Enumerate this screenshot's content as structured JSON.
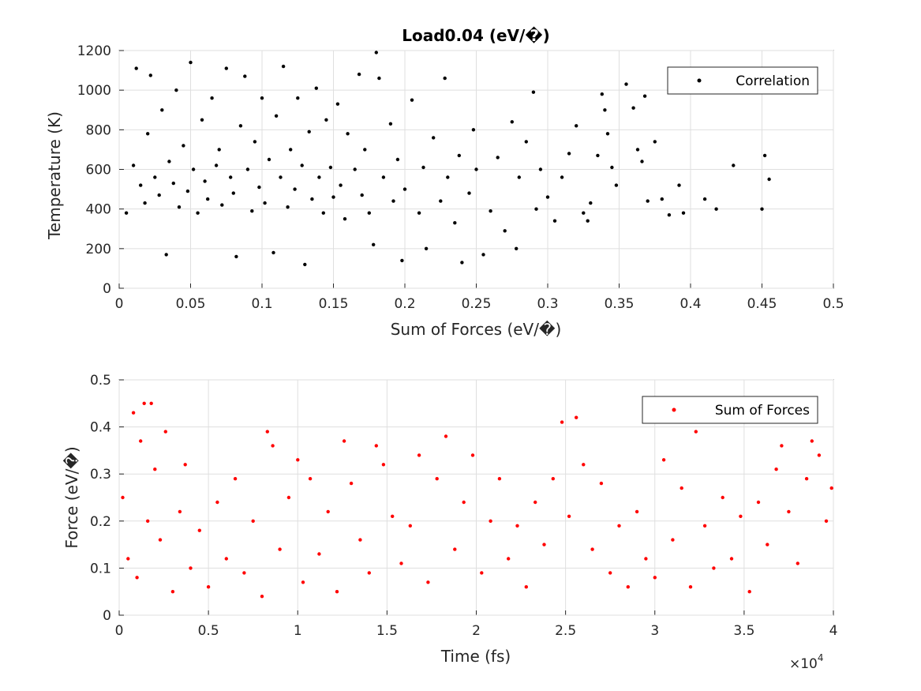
{
  "chart_data": [
    {
      "type": "scatter",
      "title": "Load0.04 (eV/�)",
      "xlabel": "Sum of Forces (eV/�)",
      "ylabel": "Temperature (K)",
      "xlim": [
        0,
        0.5
      ],
      "ylim": [
        0,
        1200
      ],
      "xticks": [
        0,
        0.05,
        0.1,
        0.15,
        0.2,
        0.25,
        0.3,
        0.35,
        0.4,
        0.45,
        0.5
      ],
      "xtick_labels": [
        "0",
        "0.05",
        "0.1",
        "0.15",
        "0.2",
        "0.25",
        "0.3",
        "0.35",
        "0.4",
        "0.45",
        "0.5"
      ],
      "yticks": [
        0,
        200,
        400,
        600,
        800,
        1000,
        1200
      ],
      "ytick_labels": [
        "0",
        "200",
        "400",
        "600",
        "800",
        "1000",
        "1200"
      ],
      "grid": true,
      "legend": "top-right",
      "series": [
        {
          "name": "Correlation",
          "color": "#000000",
          "points": [
            [
              0.005,
              380
            ],
            [
              0.01,
              620
            ],
            [
              0.012,
              1110
            ],
            [
              0.015,
              520
            ],
            [
              0.018,
              430
            ],
            [
              0.02,
              780
            ],
            [
              0.022,
              1075
            ],
            [
              0.025,
              560
            ],
            [
              0.028,
              470
            ],
            [
              0.03,
              900
            ],
            [
              0.033,
              170
            ],
            [
              0.035,
              640
            ],
            [
              0.038,
              530
            ],
            [
              0.04,
              1000
            ],
            [
              0.042,
              410
            ],
            [
              0.045,
              720
            ],
            [
              0.048,
              490
            ],
            [
              0.05,
              1140
            ],
            [
              0.052,
              600
            ],
            [
              0.055,
              380
            ],
            [
              0.058,
              850
            ],
            [
              0.06,
              540
            ],
            [
              0.062,
              450
            ],
            [
              0.065,
              960
            ],
            [
              0.068,
              620
            ],
            [
              0.07,
              700
            ],
            [
              0.072,
              420
            ],
            [
              0.075,
              1110
            ],
            [
              0.078,
              560
            ],
            [
              0.08,
              480
            ],
            [
              0.082,
              160
            ],
            [
              0.085,
              820
            ],
            [
              0.088,
              1070
            ],
            [
              0.09,
              600
            ],
            [
              0.093,
              390
            ],
            [
              0.095,
              740
            ],
            [
              0.098,
              510
            ],
            [
              0.1,
              960
            ],
            [
              0.102,
              430
            ],
            [
              0.105,
              650
            ],
            [
              0.108,
              180
            ],
            [
              0.11,
              870
            ],
            [
              0.113,
              560
            ],
            [
              0.115,
              1120
            ],
            [
              0.118,
              410
            ],
            [
              0.12,
              700
            ],
            [
              0.123,
              500
            ],
            [
              0.125,
              960
            ],
            [
              0.128,
              620
            ],
            [
              0.13,
              120
            ],
            [
              0.133,
              790
            ],
            [
              0.135,
              450
            ],
            [
              0.138,
              1010
            ],
            [
              0.14,
              560
            ],
            [
              0.143,
              380
            ],
            [
              0.145,
              850
            ],
            [
              0.148,
              610
            ],
            [
              0.15,
              460
            ],
            [
              0.153,
              930
            ],
            [
              0.155,
              520
            ],
            [
              0.158,
              350
            ],
            [
              0.16,
              780
            ],
            [
              0.165,
              600
            ],
            [
              0.168,
              1080
            ],
            [
              0.17,
              470
            ],
            [
              0.172,
              700
            ],
            [
              0.175,
              380
            ],
            [
              0.178,
              220
            ],
            [
              0.18,
              1190
            ],
            [
              0.182,
              1060
            ],
            [
              0.185,
              560
            ],
            [
              0.19,
              830
            ],
            [
              0.192,
              440
            ],
            [
              0.195,
              650
            ],
            [
              0.198,
              140
            ],
            [
              0.2,
              500
            ],
            [
              0.205,
              950
            ],
            [
              0.21,
              380
            ],
            [
              0.213,
              610
            ],
            [
              0.215,
              200
            ],
            [
              0.22,
              760
            ],
            [
              0.225,
              440
            ],
            [
              0.228,
              1060
            ],
            [
              0.23,
              560
            ],
            [
              0.235,
              330
            ],
            [
              0.238,
              670
            ],
            [
              0.24,
              130
            ],
            [
              0.245,
              480
            ],
            [
              0.248,
              800
            ],
            [
              0.25,
              600
            ],
            [
              0.255,
              170
            ],
            [
              0.26,
              390
            ],
            [
              0.265,
              660
            ],
            [
              0.27,
              290
            ],
            [
              0.275,
              840
            ],
            [
              0.278,
              200
            ],
            [
              0.28,
              560
            ],
            [
              0.285,
              740
            ],
            [
              0.29,
              990
            ],
            [
              0.292,
              400
            ],
            [
              0.295,
              600
            ],
            [
              0.3,
              460
            ],
            [
              0.305,
              340
            ],
            [
              0.31,
              560
            ],
            [
              0.315,
              680
            ],
            [
              0.32,
              820
            ],
            [
              0.325,
              380
            ],
            [
              0.328,
              340
            ],
            [
              0.33,
              430
            ],
            [
              0.335,
              670
            ],
            [
              0.338,
              980
            ],
            [
              0.34,
              900
            ],
            [
              0.342,
              780
            ],
            [
              0.345,
              610
            ],
            [
              0.348,
              520
            ],
            [
              0.355,
              1030
            ],
            [
              0.36,
              910
            ],
            [
              0.363,
              700
            ],
            [
              0.366,
              640
            ],
            [
              0.368,
              970
            ],
            [
              0.37,
              440
            ],
            [
              0.375,
              740
            ],
            [
              0.38,
              450
            ],
            [
              0.385,
              370
            ],
            [
              0.392,
              520
            ],
            [
              0.395,
              380
            ],
            [
              0.41,
              450
            ],
            [
              0.418,
              400
            ],
            [
              0.43,
              620
            ],
            [
              0.45,
              400
            ],
            [
              0.452,
              670
            ],
            [
              0.455,
              550
            ]
          ]
        }
      ]
    },
    {
      "type": "scatter",
      "title": "",
      "xlabel": "Time (fs)",
      "ylabel": "Force (eV/�)",
      "xlim": [
        0,
        40000
      ],
      "ylim": [
        0,
        0.5
      ],
      "xticks": [
        0,
        5000,
        10000,
        15000,
        20000,
        25000,
        30000,
        35000,
        40000
      ],
      "xtick_labels": [
        "0",
        "0.5",
        "1",
        "1.5",
        "2",
        "2.5",
        "3",
        "3.5",
        "4"
      ],
      "x_exponent": "×10",
      "x_exponent_power": "4",
      "yticks": [
        0,
        0.1,
        0.2,
        0.3,
        0.4,
        0.5
      ],
      "ytick_labels": [
        "0",
        "0.1",
        "0.2",
        "0.3",
        "0.4",
        "0.5"
      ],
      "grid": true,
      "legend": "top-right",
      "series": [
        {
          "name": "Sum of Forces",
          "color": "#ff0000",
          "points": [
            [
              200,
              0.25
            ],
            [
              500,
              0.12
            ],
            [
              800,
              0.43
            ],
            [
              1000,
              0.08
            ],
            [
              1200,
              0.37
            ],
            [
              1400,
              0.45
            ],
            [
              1600,
              0.2
            ],
            [
              1800,
              0.45
            ],
            [
              2000,
              0.31
            ],
            [
              2300,
              0.16
            ],
            [
              2600,
              0.39
            ],
            [
              3000,
              0.05
            ],
            [
              3400,
              0.22
            ],
            [
              3700,
              0.32
            ],
            [
              4000,
              0.1
            ],
            [
              4500,
              0.18
            ],
            [
              5000,
              0.06
            ],
            [
              5500,
              0.24
            ],
            [
              6000,
              0.12
            ],
            [
              6500,
              0.29
            ],
            [
              7000,
              0.09
            ],
            [
              7500,
              0.2
            ],
            [
              8000,
              0.04
            ],
            [
              8300,
              0.39
            ],
            [
              8600,
              0.36
            ],
            [
              9000,
              0.14
            ],
            [
              9500,
              0.25
            ],
            [
              10000,
              0.33
            ],
            [
              10300,
              0.07
            ],
            [
              10700,
              0.29
            ],
            [
              11200,
              0.13
            ],
            [
              11700,
              0.22
            ],
            [
              12200,
              0.05
            ],
            [
              12600,
              0.37
            ],
            [
              13000,
              0.28
            ],
            [
              13500,
              0.16
            ],
            [
              14000,
              0.09
            ],
            [
              14400,
              0.36
            ],
            [
              14800,
              0.32
            ],
            [
              15300,
              0.21
            ],
            [
              15800,
              0.11
            ],
            [
              16300,
              0.19
            ],
            [
              16800,
              0.34
            ],
            [
              17300,
              0.07
            ],
            [
              17800,
              0.29
            ],
            [
              18300,
              0.38
            ],
            [
              18800,
              0.14
            ],
            [
              19300,
              0.24
            ],
            [
              19800,
              0.34
            ],
            [
              20300,
              0.09
            ],
            [
              20800,
              0.2
            ],
            [
              21300,
              0.29
            ],
            [
              21800,
              0.12
            ],
            [
              22300,
              0.19
            ],
            [
              22800,
              0.06
            ],
            [
              23300,
              0.24
            ],
            [
              23800,
              0.15
            ],
            [
              24300,
              0.29
            ],
            [
              24800,
              0.41
            ],
            [
              25200,
              0.21
            ],
            [
              25600,
              0.42
            ],
            [
              26000,
              0.32
            ],
            [
              26500,
              0.14
            ],
            [
              27000,
              0.28
            ],
            [
              27500,
              0.09
            ],
            [
              28000,
              0.19
            ],
            [
              28500,
              0.06
            ],
            [
              29000,
              0.22
            ],
            [
              29500,
              0.12
            ],
            [
              30000,
              0.08
            ],
            [
              30500,
              0.33
            ],
            [
              31000,
              0.16
            ],
            [
              31500,
              0.27
            ],
            [
              32000,
              0.06
            ],
            [
              32300,
              0.39
            ],
            [
              32800,
              0.19
            ],
            [
              33300,
              0.1
            ],
            [
              33800,
              0.25
            ],
            [
              34300,
              0.12
            ],
            [
              34800,
              0.21
            ],
            [
              35300,
              0.05
            ],
            [
              35800,
              0.24
            ],
            [
              36300,
              0.15
            ],
            [
              36800,
              0.31
            ],
            [
              37100,
              0.36
            ],
            [
              37500,
              0.22
            ],
            [
              38000,
              0.11
            ],
            [
              38500,
              0.29
            ],
            [
              38800,
              0.37
            ],
            [
              39200,
              0.34
            ],
            [
              39600,
              0.2
            ],
            [
              39900,
              0.27
            ]
          ]
        }
      ]
    }
  ]
}
